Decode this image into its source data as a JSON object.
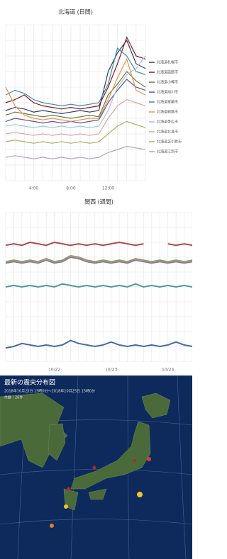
{
  "chart_data": [
    {
      "type": "line",
      "title": "北海道 (日間)",
      "grid": true,
      "legend": "right",
      "ylim": [
        0,
        100
      ],
      "categories": [
        null,
        null,
        null,
        "4:00",
        null,
        null,
        null,
        "8:00",
        null,
        null,
        null,
        "12:00",
        null,
        null,
        null,
        null
      ],
      "series": [
        {
          "name": "北海道札幌市",
          "color": "#2c3e70",
          "values": [
            45,
            47,
            46,
            44,
            45,
            44,
            43,
            44,
            45,
            44,
            45,
            70,
            82,
            90,
            75,
            72
          ]
        },
        {
          "name": "北海道函館市",
          "color": "#8b1a1a",
          "values": [
            50,
            52,
            55,
            50,
            48,
            47,
            46,
            47,
            46,
            47,
            48,
            60,
            75,
            92,
            80,
            78
          ]
        },
        {
          "name": "北海道小樽市",
          "color": "#6b7b3a",
          "values": [
            42,
            44,
            43,
            42,
            41,
            42,
            41,
            40,
            41,
            42,
            41,
            55,
            62,
            70,
            64,
            60
          ]
        },
        {
          "name": "北海道旭川市",
          "color": "#6a4c93",
          "values": [
            38,
            40,
            39,
            38,
            37,
            38,
            37,
            38,
            37,
            38,
            39,
            50,
            58,
            65,
            60,
            58
          ]
        },
        {
          "name": "北海道室蘭市",
          "color": "#3a8ea5",
          "values": [
            55,
            58,
            56,
            52,
            50,
            49,
            48,
            49,
            48,
            49,
            50,
            62,
            85,
            80,
            70,
            68
          ]
        },
        {
          "name": "北海道釧路市",
          "color": "#e8934a",
          "values": [
            60,
            48,
            42,
            40,
            39,
            40,
            39,
            38,
            39,
            40,
            40,
            52,
            66,
            78,
            58,
            55
          ]
        },
        {
          "name": "北海道帯広市",
          "color": "#9ec4e8",
          "values": [
            35,
            36,
            35,
            34,
            35,
            34,
            35,
            34,
            35,
            34,
            35,
            45,
            60,
            68,
            72,
            80
          ]
        },
        {
          "name": "北海道北見市",
          "color": "#e8a0a0",
          "values": [
            30,
            31,
            30,
            29,
            30,
            29,
            30,
            29,
            30,
            29,
            30,
            40,
            48,
            52,
            50,
            48
          ]
        },
        {
          "name": "北海道苫小牧市",
          "color": "#a8b060",
          "values": [
            25,
            26,
            25,
            24,
            25,
            24,
            25,
            24,
            25,
            24,
            25,
            30,
            35,
            38,
            36,
            34
          ]
        },
        {
          "name": "北海道江別市",
          "color": "#b4a0d0",
          "values": [
            15,
            16,
            15,
            14,
            15,
            14,
            15,
            14,
            15,
            14,
            15,
            18,
            20,
            22,
            21,
            20
          ]
        }
      ]
    },
    {
      "type": "line",
      "title": "関西 (週間)",
      "grid": true,
      "ylim": [
        0,
        100
      ],
      "categories": [
        null,
        null,
        null,
        null,
        null,
        null,
        "10/22",
        null,
        null,
        null,
        null,
        null,
        null,
        "10/23",
        null,
        null,
        null,
        null,
        null,
        null,
        "10/24",
        null,
        null,
        null
      ],
      "series": [
        {
          "color": "#b04a4a",
          "values": [
            78,
            79,
            78,
            80,
            79,
            78,
            80,
            79,
            78,
            79,
            78,
            79,
            78,
            79,
            80,
            79,
            78,
            79,
            null,
            null,
            79,
            78,
            79,
            78
          ]
        },
        {
          "color": "#8a7a9a",
          "values": [
            66,
            67,
            66,
            67,
            66,
            68,
            66,
            67,
            70,
            69,
            67,
            66,
            67,
            66,
            67,
            66,
            68,
            67,
            66,
            67,
            66,
            67,
            66,
            67
          ]
        },
        {
          "color": "#9a9a6a",
          "values": [
            67,
            68,
            67,
            68,
            67,
            69,
            67,
            68,
            71,
            70,
            68,
            67,
            68,
            67,
            68,
            67,
            69,
            68,
            67,
            68,
            67,
            68,
            67,
            68
          ]
        },
        {
          "color": "#4a9aa0",
          "values": [
            50,
            51,
            50,
            51,
            50,
            51,
            50,
            52,
            51,
            50,
            51,
            50,
            51,
            50,
            51,
            50,
            52,
            50,
            51,
            50,
            51,
            50,
            51,
            50
          ]
        },
        {
          "color": "#4a6aa8",
          "values": [
            9,
            10,
            12,
            11,
            10,
            11,
            10,
            11,
            14,
            12,
            11,
            10,
            11,
            13,
            11,
            10,
            11,
            10,
            11,
            10,
            11,
            13,
            11,
            10
          ]
        }
      ]
    }
  ],
  "map": {
    "title": "最新の震央分布図",
    "period": "2018年10月23日 15時0分〜2018年10月25日 15時0分",
    "count": "件数：26件"
  }
}
